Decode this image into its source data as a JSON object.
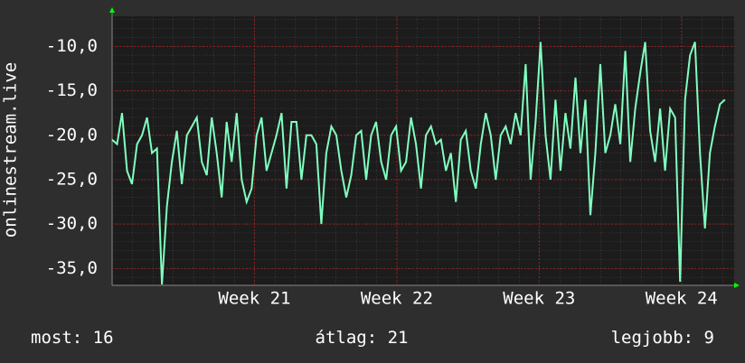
{
  "chart_data": {
    "type": "line",
    "y_label": "onlinestream.live",
    "x": [
      20,
      20.035,
      20.07,
      20.105,
      20.14,
      20.175,
      20.21,
      20.245,
      20.28,
      20.315,
      20.35,
      20.385,
      20.42,
      20.455,
      20.49,
      20.525,
      20.56,
      20.595,
      20.63,
      20.665,
      20.7,
      20.735,
      20.77,
      20.805,
      20.84,
      20.875,
      20.91,
      20.945,
      20.98,
      21.015,
      21.05,
      21.085,
      21.12,
      21.155,
      21.19,
      21.225,
      21.26,
      21.295,
      21.33,
      21.365,
      21.4,
      21.435,
      21.47,
      21.505,
      21.54,
      21.575,
      21.61,
      21.645,
      21.68,
      21.715,
      21.75,
      21.785,
      21.82,
      21.855,
      21.89,
      21.925,
      21.96,
      21.995,
      22.03,
      22.065,
      22.1,
      22.135,
      22.17,
      22.205,
      22.24,
      22.275,
      22.31,
      22.345,
      22.38,
      22.415,
      22.45,
      22.485,
      22.52,
      22.555,
      22.59,
      22.625,
      22.66,
      22.695,
      22.73,
      22.765,
      22.8,
      22.835,
      22.87,
      22.905,
      22.94,
      22.975,
      23.01,
      23.045,
      23.08,
      23.115,
      23.15,
      23.185,
      23.22,
      23.255,
      23.29,
      23.325,
      23.36,
      23.395,
      23.43,
      23.465,
      23.5,
      23.535,
      23.57,
      23.605,
      23.64,
      23.675,
      23.71,
      23.745,
      23.78,
      23.815,
      23.85,
      23.885,
      23.92,
      23.955,
      23.99,
      24.025,
      24.06,
      24.095,
      24.13,
      24.165,
      24.2,
      24.235,
      24.27,
      24.305
    ],
    "series": [
      {
        "name": "onlinestream.live",
        "color": "#80ffc0",
        "values": [
          -20.5,
          -21,
          -17.5,
          -24,
          -25.5,
          -21,
          -20,
          -18,
          -22,
          -21.5,
          -36.8,
          -28,
          -23,
          -19.5,
          -25.5,
          -20,
          -19,
          -18,
          -23,
          -24.5,
          -18,
          -22,
          -27,
          -18.5,
          -23,
          -17.5,
          -25,
          -27.5,
          -26,
          -20,
          -18,
          -24,
          -22,
          -20,
          -17.5,
          -26,
          -18.5,
          -18.5,
          -25,
          -20,
          -20,
          -21,
          -30,
          -22,
          -19,
          -20,
          -24,
          -27,
          -24.5,
          -20,
          -19.5,
          -25,
          -20,
          -18.5,
          -23,
          -25,
          -20,
          -19,
          -24,
          -23,
          -18,
          -21,
          -26,
          -20,
          -19,
          -21,
          -20.5,
          -24,
          -22,
          -27.5,
          -20.5,
          -19.5,
          -24,
          -26,
          -21,
          -17.5,
          -20,
          -25,
          -20,
          -19,
          -21,
          -17.5,
          -20,
          -12,
          -25,
          -18.5,
          -9.5,
          -20,
          -25,
          -16,
          -24,
          -17.5,
          -21.5,
          -13.5,
          -22,
          -16,
          -29,
          -22,
          -12,
          -22,
          -20,
          -16.5,
          -21,
          -10.5,
          -23,
          -17,
          -13,
          -9.5,
          -19.5,
          -23,
          -17,
          -24,
          -17,
          -18,
          -36.5,
          -16,
          -11,
          -9.5,
          -22,
          -30.5,
          -22,
          -19,
          -16.5,
          -16
        ]
      }
    ],
    "xlim": [
      20,
      24.37
    ],
    "ylim": [
      -36.9,
      -6.6
    ],
    "xticks": [
      {
        "value": 21,
        "label": "Week 21"
      },
      {
        "value": 22,
        "label": "Week 22"
      },
      {
        "value": 23,
        "label": "Week 23"
      },
      {
        "value": 24,
        "label": "Week 24"
      }
    ],
    "yticks": [
      {
        "value": -10,
        "label": "-10,0"
      },
      {
        "value": -15,
        "label": "-15,0"
      },
      {
        "value": -20,
        "label": "-20,0"
      },
      {
        "value": -25,
        "label": "-25,0"
      },
      {
        "value": -30,
        "label": "-30,0"
      },
      {
        "value": -35,
        "label": "-35,0"
      }
    ],
    "grid": true,
    "stats": [
      {
        "label": "most:",
        "value": 16
      },
      {
        "label": "átlag:",
        "value": 21
      },
      {
        "label": "legjobb:",
        "value": 9
      }
    ]
  }
}
